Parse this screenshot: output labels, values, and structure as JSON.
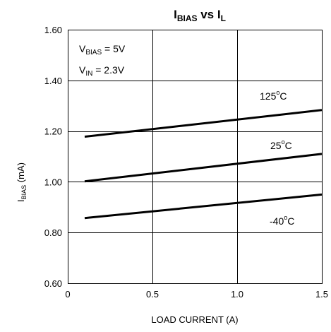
{
  "chart_data": {
    "type": "line",
    "title": {
      "main": "I",
      "sub": "BIAS",
      "mid": " vs I",
      "sub2": "L"
    },
    "xlabel": "LOAD CURRENT (A)",
    "ylabel": {
      "main": "I",
      "sub": "BIAS",
      "rest": " (mA)"
    },
    "xlim": [
      0,
      1.5
    ],
    "ylim": [
      0.6,
      1.6
    ],
    "xticks": [
      0,
      0.5,
      1.0,
      1.5
    ],
    "xtick_labels": [
      "0",
      "0.5",
      "1.0",
      "1.5"
    ],
    "yticks": [
      0.6,
      0.8,
      1.0,
      1.2,
      1.4,
      1.6
    ],
    "ytick_labels": [
      "0.60",
      "0.80",
      "1.00",
      "1.20",
      "1.40",
      "1.60"
    ],
    "grid": true,
    "conditions": [
      {
        "main": "V",
        "sub": "BIAS",
        "rest": " = 5V"
      },
      {
        "main": "V",
        "sub": "IN",
        "rest": " = 2.3V"
      }
    ],
    "series": [
      {
        "name": "125°C",
        "label_main": "125",
        "label_sup": "o",
        "label_rest": "C",
        "x": [
          0.1,
          1.5
        ],
        "y": [
          1.178,
          1.283
        ]
      },
      {
        "name": "25°C",
        "label_main": "25",
        "label_sup": "o",
        "label_rest": "C",
        "x": [
          0.1,
          1.5
        ],
        "y": [
          1.002,
          1.11
        ]
      },
      {
        "name": "-40°C",
        "label_main": "-40",
        "label_sup": "o",
        "label_rest": "C",
        "x": [
          0.1,
          1.5
        ],
        "y": [
          0.857,
          0.95
        ]
      }
    ]
  }
}
